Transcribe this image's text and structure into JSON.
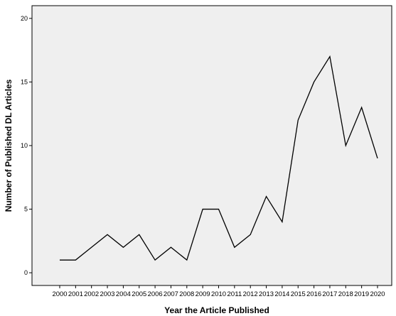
{
  "chart_data": {
    "type": "line",
    "title": "",
    "xlabel": "Year the Article Published",
    "ylabel": "Number of Published DL Articles",
    "categories": [
      "2000",
      "2001",
      "2002",
      "2003",
      "2004",
      "2005",
      "2006",
      "2007",
      "2008",
      "2009",
      "2010",
      "2011",
      "2012",
      "2013",
      "2014",
      "2015",
      "2016",
      "2017",
      "2018",
      "2019",
      "2020"
    ],
    "series": [
      {
        "values": [
          1,
          1,
          2,
          3,
          2,
          3,
          1,
          2,
          1,
          5,
          5,
          2,
          3,
          6,
          4,
          12,
          15,
          17,
          10,
          13,
          9
        ]
      }
    ],
    "ylim": [
      -1,
      21
    ],
    "yticks": [
      0,
      5,
      10,
      15,
      20
    ],
    "grid": false,
    "legend": "none",
    "colors": {
      "line": "#000000",
      "plot_background": "#efefef",
      "frame": "#000000"
    }
  }
}
